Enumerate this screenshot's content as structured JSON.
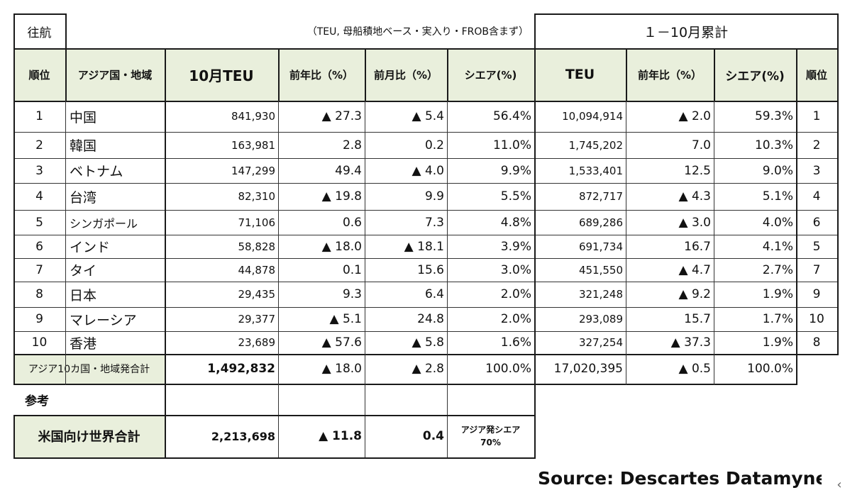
{
  "outbound_label": "往航",
  "unit_note": "（TEU, 母船積地ベース・実入り・FROB含まず）",
  "cumulative_title": "１－10月累計",
  "headers": {
    "rank": "順位",
    "country": "アジア国・地域",
    "oct_teu": "10月TEU",
    "yoy": "前年比（%）",
    "mom": "前月比（%）",
    "share": "シエア(%)",
    "cum_teu": "TEU",
    "cum_yoy": "前年比（%）",
    "cum_share": "シエア(%)",
    "cum_rank": "順位"
  },
  "rows": [
    {
      "rank": "1",
      "country": "中国",
      "teu": "841,930",
      "yoy": "▲ 27.3",
      "mom": "▲ 5.4",
      "share": "56.4%",
      "cum_teu": "10,094,914",
      "cum_yoy": "▲ 2.0",
      "cum_share": "59.3%",
      "cum_rank": "1"
    },
    {
      "rank": "2",
      "country": "韓国",
      "teu": "163,981",
      "yoy": "2.8",
      "mom": "0.2",
      "share": "11.0%",
      "cum_teu": "1,745,202",
      "cum_yoy": "7.0",
      "cum_share": "10.3%",
      "cum_rank": "2"
    },
    {
      "rank": "3",
      "country": "ベトナム",
      "teu": "147,299",
      "yoy": "49.4",
      "mom": "▲ 4.0",
      "share": "9.9%",
      "cum_teu": "1,533,401",
      "cum_yoy": "12.5",
      "cum_share": "9.0%",
      "cum_rank": "3"
    },
    {
      "rank": "4",
      "country": "台湾",
      "teu": "82,310",
      "yoy": "▲ 19.8",
      "mom": "9.9",
      "share": "5.5%",
      "cum_teu": "872,717",
      "cum_yoy": "▲ 4.3",
      "cum_share": "5.1%",
      "cum_rank": "4"
    },
    {
      "rank": "5",
      "country": "シンガポール",
      "teu": "71,106",
      "yoy": "0.6",
      "mom": "7.3",
      "share": "4.8%",
      "cum_teu": "689,286",
      "cum_yoy": "▲ 3.0",
      "cum_share": "4.0%",
      "cum_rank": "6"
    },
    {
      "rank": "6",
      "country": "インド",
      "teu": "58,828",
      "yoy": "▲ 18.0",
      "mom": "▲ 18.1",
      "share": "3.9%",
      "cum_teu": "691,734",
      "cum_yoy": "16.7",
      "cum_share": "4.1%",
      "cum_rank": "5"
    },
    {
      "rank": "7",
      "country": "タイ",
      "teu": "44,878",
      "yoy": "0.1",
      "mom": "15.6",
      "share": "3.0%",
      "cum_teu": "451,550",
      "cum_yoy": "▲ 4.7",
      "cum_share": "2.7%",
      "cum_rank": "7"
    },
    {
      "rank": "8",
      "country": "日本",
      "teu": "29,435",
      "yoy": "9.3",
      "mom": "6.4",
      "share": "2.0%",
      "cum_teu": "321,248",
      "cum_yoy": "▲ 9.2",
      "cum_share": "1.9%",
      "cum_rank": "9"
    },
    {
      "rank": "9",
      "country": "マレーシア",
      "teu": "29,377",
      "yoy": "▲ 5.1",
      "mom": "24.8",
      "share": "2.0%",
      "cum_teu": "293,089",
      "cum_yoy": "15.7",
      "cum_share": "1.7%",
      "cum_rank": "10"
    },
    {
      "rank": "10",
      "country": "香港",
      "teu": "23,689",
      "yoy": "▲ 57.6",
      "mom": "▲ 5.8",
      "share": "1.6%",
      "cum_teu": "327,254",
      "cum_yoy": "▲ 37.3",
      "cum_share": "1.9%",
      "cum_rank": "8"
    }
  ],
  "total": {
    "label": "アジア10カ国・地域発合計",
    "teu": "1,492,832",
    "yoy": "▲ 18.0",
    "mom": "▲ 2.8",
    "share": "100.0%",
    "cum_teu": "17,020,395",
    "cum_yoy": "▲ 0.5",
    "cum_share": "100.0%"
  },
  "reference": {
    "label": "参考",
    "us_label": "米国向け世界合計",
    "teu": "2,213,698",
    "yoy": "▲ 11.8",
    "mom": "0.4",
    "asia_share_label": "アジア発シエア",
    "asia_share_value": "70%"
  },
  "source": "Source: Descartes Datamyne",
  "arrow_glyph": "‹",
  "colors": {
    "header_bg": "#e9efdc",
    "grid": "#1a1a1a"
  }
}
